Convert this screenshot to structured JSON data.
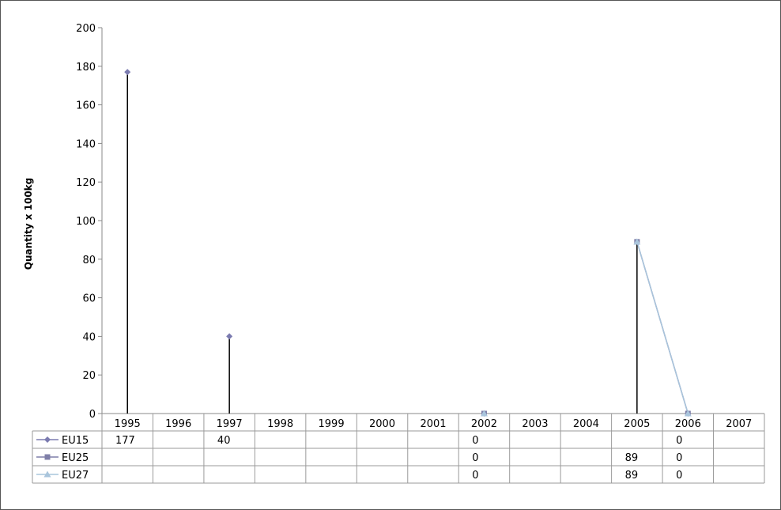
{
  "chart_data": {
    "type": "line",
    "ylabel": "Quantity x 100kg",
    "ylim": [
      0,
      200
    ],
    "yticks": [
      0,
      20,
      40,
      60,
      80,
      100,
      120,
      140,
      160,
      180,
      200
    ],
    "categories": [
      "1995",
      "1996",
      "1997",
      "1998",
      "1999",
      "2000",
      "2001",
      "2002",
      "2003",
      "2004",
      "2005",
      "2006",
      "2007"
    ],
    "grid": false,
    "legend": "data-table",
    "drop_lines": true,
    "series": [
      {
        "name": "EU15",
        "marker": "diamond",
        "color": "#7b7bb0",
        "values": [
          177,
          null,
          40,
          null,
          null,
          null,
          null,
          0,
          null,
          null,
          null,
          0,
          null
        ]
      },
      {
        "name": "EU25",
        "marker": "square",
        "color": "#7f7fa8",
        "values": [
          null,
          null,
          null,
          null,
          null,
          null,
          null,
          0,
          null,
          null,
          89,
          0,
          null
        ]
      },
      {
        "name": "EU27",
        "marker": "triangle",
        "color": "#a9c5dc",
        "values": [
          null,
          null,
          null,
          null,
          null,
          null,
          null,
          0,
          null,
          null,
          89,
          0,
          null
        ]
      }
    ]
  }
}
